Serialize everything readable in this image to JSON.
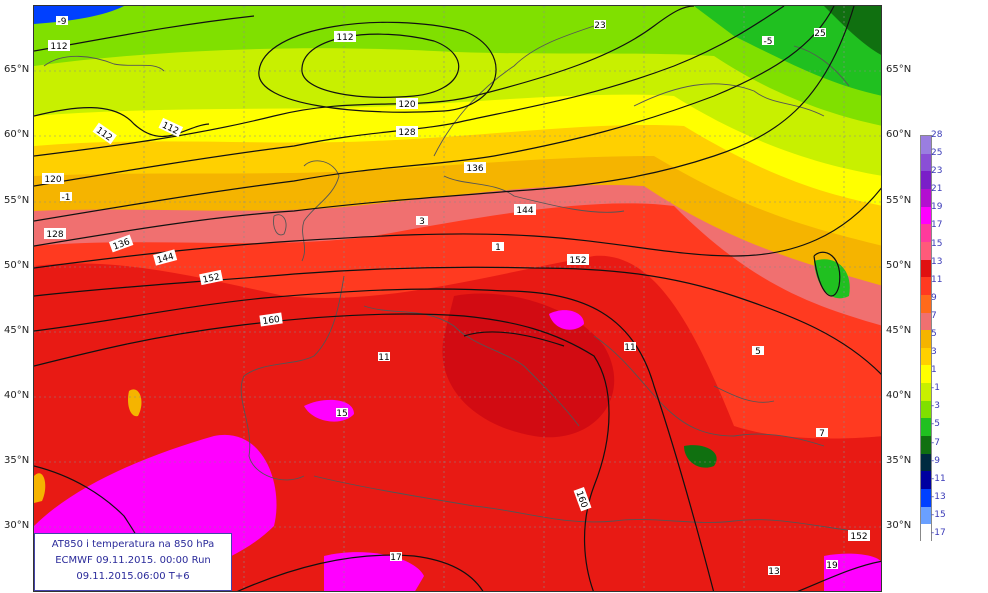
{
  "info": {
    "line1": "AT850 i temperatura na 850 hPa",
    "line2": "ECMWF 09.11.2015.  00:00 Run",
    "line3": "09.11.2015.06:00  T+6"
  },
  "latitudes": [
    "65°N",
    "60°N",
    "55°N",
    "50°N",
    "45°N",
    "40°N",
    "35°N",
    "30°N"
  ],
  "legend": {
    "labels": [
      "28",
      "25",
      "23",
      "21",
      "19",
      "17",
      "15",
      "13",
      "11",
      "9",
      "7",
      "5",
      "3",
      "1",
      "-1",
      "-3",
      "-5",
      "-7",
      "-9",
      "-11",
      "-13",
      "-15",
      "-17"
    ],
    "colors": [
      "#9a7ee0",
      "#8a4fd6",
      "#7a1fc8",
      "#b30fd0",
      "#ff00ff",
      "#ff3a9c",
      "#ff5a7a",
      "#e01010",
      "#ff3a20",
      "#ff6a1a",
      "#f07070",
      "#f5b400",
      "#ffd000",
      "#ffff00",
      "#c8f000",
      "#80e000",
      "#20c020",
      "#107010",
      "#002a40",
      "#0000a0",
      "#0040ff",
      "#6aa0ff",
      "#ffffff"
    ]
  },
  "contour_labels": [
    "112",
    "112",
    "112",
    "112",
    "120",
    "120",
    "128",
    "128",
    "136",
    "136",
    "144",
    "144",
    "152",
    "152",
    "160",
    "160",
    "152"
  ],
  "temp_labels": [
    "-9",
    "-5",
    "-1",
    "1",
    "3",
    "5",
    "7",
    "11",
    "11",
    "13",
    "15",
    "17",
    "19",
    "23",
    "25"
  ]
}
